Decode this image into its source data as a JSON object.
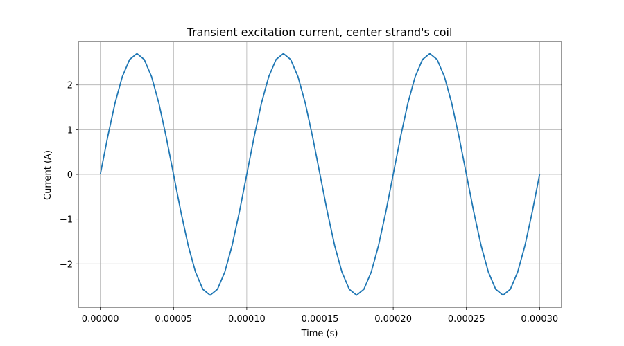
{
  "chart_data": {
    "type": "line",
    "title": "Transient excitation current, center strand's coil",
    "x_label": "Time (s)",
    "y_label": "Current (A)",
    "x": [
      0,
      5e-06,
      1e-05,
      1.5e-05,
      2e-05,
      2.5e-05,
      3e-05,
      3.5e-05,
      4e-05,
      4.5e-05,
      5e-05,
      5.5e-05,
      6e-05,
      6.5e-05,
      7e-05,
      7.5e-05,
      8e-05,
      8.5e-05,
      9e-05,
      9.5e-05,
      0.0001,
      0.000105,
      0.00011,
      0.000115,
      0.00012,
      0.000125,
      0.00013,
      0.000135,
      0.00014,
      0.000145,
      0.00015,
      0.000155,
      0.00016,
      0.000165,
      0.00017,
      0.000175,
      0.00018,
      0.000185,
      0.00019,
      0.000195,
      0.0002,
      0.000205,
      0.00021,
      0.000215,
      0.00022,
      0.000225,
      0.00023,
      0.000235,
      0.00024,
      0.000245,
      0.00025,
      0.000255,
      0.00026,
      0.000265,
      0.00027,
      0.000275,
      0.00028,
      0.000285,
      0.00029,
      0.000295,
      0.0003
    ],
    "values": [
      0,
      0.834,
      1.587,
      2.184,
      2.568,
      2.7,
      2.568,
      2.184,
      1.587,
      0.834,
      0,
      -0.834,
      -1.587,
      -2.184,
      -2.568,
      -2.7,
      -2.568,
      -2.184,
      -1.587,
      -0.834,
      0,
      0.834,
      1.587,
      2.184,
      2.568,
      2.7,
      2.568,
      2.184,
      1.587,
      0.834,
      0,
      -0.834,
      -1.587,
      -2.184,
      -2.568,
      -2.7,
      -2.568,
      -2.184,
      -1.587,
      -0.834,
      0,
      0.834,
      1.587,
      2.184,
      2.568,
      2.7,
      2.568,
      2.184,
      1.587,
      0.834,
      0,
      -0.834,
      -1.587,
      -2.184,
      -2.568,
      -2.7,
      -2.568,
      -2.184,
      -1.587,
      -0.834,
      0
    ],
    "color": "#1f77b4",
    "xlim": [
      -1.5e-05,
      0.000315
    ],
    "xticks": [
      {
        "value": 0,
        "label": "0.00000"
      },
      {
        "value": 5e-05,
        "label": "0.00005"
      },
      {
        "value": 0.0001,
        "label": "0.00010"
      },
      {
        "value": 0.00015,
        "label": "0.00015"
      },
      {
        "value": 0.0002,
        "label": "0.00020"
      },
      {
        "value": 0.00025,
        "label": "0.00025"
      },
      {
        "value": 0.0003,
        "label": "0.00030"
      }
    ],
    "ylim": [
      -2.97,
      2.97
    ],
    "yticks": [
      {
        "value": -2,
        "label": "−2"
      },
      {
        "value": -1,
        "label": "−1"
      },
      0,
      1,
      2
    ],
    "grid": true
  }
}
